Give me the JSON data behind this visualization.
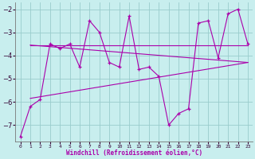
{
  "xlabel": "Windchill (Refroidissement éolien,°C)",
  "bg_color": "#c8eeee",
  "line_color": "#aa00aa",
  "grid_color": "#99cccc",
  "series": [
    [
      0,
      -7.5
    ],
    [
      1,
      -6.2
    ],
    [
      2,
      -5.9
    ],
    [
      3,
      -3.5
    ],
    [
      4,
      -3.7
    ],
    [
      5,
      -3.5
    ],
    [
      6,
      -4.5
    ],
    [
      7,
      -2.5
    ],
    [
      8,
      -3.0
    ],
    [
      9,
      -4.3
    ],
    [
      10,
      -4.5
    ],
    [
      11,
      -2.3
    ],
    [
      12,
      -4.6
    ],
    [
      13,
      -4.5
    ],
    [
      14,
      -4.9
    ],
    [
      15,
      -7.0
    ],
    [
      16,
      -6.5
    ],
    [
      17,
      -6.3
    ],
    [
      18,
      -2.6
    ],
    [
      19,
      -2.5
    ],
    [
      20,
      -4.1
    ],
    [
      21,
      -2.2
    ],
    [
      22,
      -2.0
    ],
    [
      23,
      -3.5
    ]
  ],
  "trendline1": [
    [
      1,
      -3.55
    ],
    [
      23,
      -3.55
    ]
  ],
  "trendline2": [
    [
      1,
      -3.55
    ],
    [
      23,
      -4.3
    ]
  ],
  "trendline3": [
    [
      1,
      -5.85
    ],
    [
      23,
      -4.3
    ]
  ],
  "xlim": [
    -0.5,
    23.5
  ],
  "ylim": [
    -7.7,
    -1.7
  ],
  "yticks": [
    -7,
    -6,
    -5,
    -4,
    -3,
    -2
  ],
  "xticks": [
    0,
    1,
    2,
    3,
    4,
    5,
    6,
    7,
    8,
    9,
    10,
    11,
    12,
    13,
    14,
    15,
    16,
    17,
    18,
    19,
    20,
    21,
    22,
    23
  ]
}
